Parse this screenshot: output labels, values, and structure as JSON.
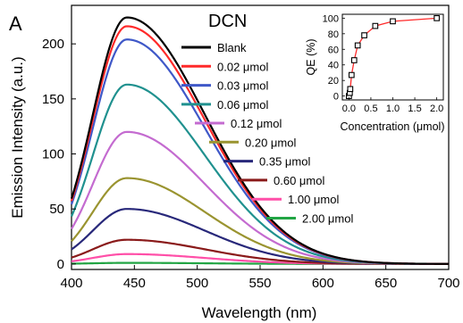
{
  "panel_label": "A",
  "chart_data": [
    {
      "type": "line",
      "title": "DCN",
      "xlabel": "Wavelength (nm)",
      "ylabel": "Emission Intensity (a.u.)",
      "xlim": [
        400,
        700
      ],
      "ylim": [
        -5,
        235
      ],
      "xticks": [
        "400",
        "450",
        "500",
        "550",
        "600",
        "650",
        "700"
      ],
      "yticks": [
        "0",
        "50",
        "100",
        "150",
        "200"
      ],
      "legend_position": "right",
      "series": [
        {
          "name": "Blank",
          "color": "#000000",
          "peak": 224
        },
        {
          "name": "0.02 μmol",
          "color": "#ff2a2a",
          "peak": 216
        },
        {
          "name": "0.03 μmol",
          "color": "#3f58c8",
          "peak": 204
        },
        {
          "name": "0.06 μmol",
          "color": "#20918f",
          "peak": 163
        },
        {
          "name": "0.12 μmol",
          "color": "#c46bd0",
          "peak": 120
        },
        {
          "name": "0.20 μmol",
          "color": "#9a9430",
          "peak": 78
        },
        {
          "name": "0.35 μmol",
          "color": "#28287a",
          "peak": 50
        },
        {
          "name": "0.60 μmol",
          "color": "#8a1a1a",
          "peak": 22
        },
        {
          "name": "1.00 μmol",
          "color": "#ff4fa8",
          "peak": 9
        },
        {
          "name": "2.00 μmol",
          "color": "#22a544",
          "peak": 1
        }
      ],
      "peak_wavelength": 444
    },
    {
      "type": "line",
      "title": "",
      "xlabel": "Concentration (μmol)",
      "ylabel": "QE (%)",
      "xlim": [
        -0.15,
        2.15
      ],
      "ylim": [
        -5,
        105
      ],
      "xticks": [
        "0.0",
        "0.5",
        "1.0",
        "1.5",
        "2.0"
      ],
      "yticks": [
        "0",
        "20",
        "40",
        "60",
        "80",
        "100"
      ],
      "marker": "square",
      "line_color": "#ff2a2a",
      "x": [
        0,
        0.02,
        0.03,
        0.06,
        0.12,
        0.2,
        0.35,
        0.6,
        1.0,
        2.0
      ],
      "y": [
        0,
        4,
        9,
        27,
        46,
        65,
        78,
        90,
        96,
        100
      ]
    }
  ]
}
